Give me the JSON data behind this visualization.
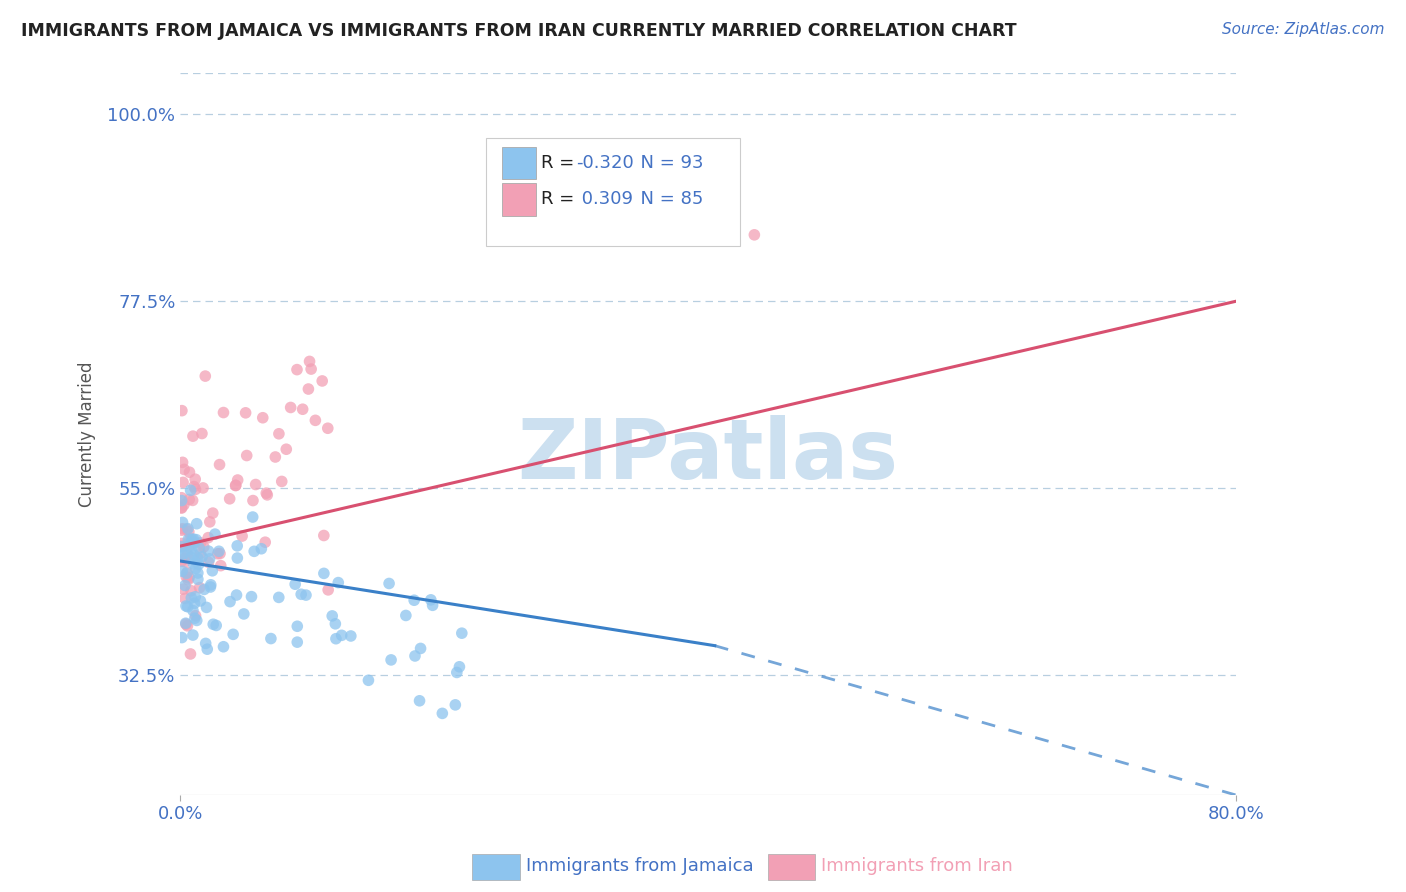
{
  "title": "IMMIGRANTS FROM JAMAICA VS IMMIGRANTS FROM IRAN CURRENTLY MARRIED CORRELATION CHART",
  "source": "Source: ZipAtlas.com",
  "xlabel_jamaica": "Immigrants from Jamaica",
  "xlabel_iran": "Immigrants from Iran",
  "ylabel": "Currently Married",
  "xlim": [
    0.0,
    0.8
  ],
  "ylim": [
    0.18,
    1.05
  ],
  "xtick_labels": [
    "0.0%",
    "80.0%"
  ],
  "yticks": [
    0.325,
    0.55,
    0.775,
    1.0
  ],
  "ytick_labels": [
    "32.5%",
    "55.0%",
    "77.5%",
    "100.0%"
  ],
  "legend_r_jamaica": "-0.320",
  "legend_n_jamaica": "93",
  "legend_r_iran": "0.309",
  "legend_n_iran": "85",
  "color_jamaica": "#8dc4ee",
  "color_iran": "#f2a0b5",
  "color_line_jamaica": "#3a80c8",
  "color_line_iran": "#d85070",
  "color_axis_labels": "#4472c4",
  "color_title": "#222222",
  "color_source": "#4472c4",
  "watermark_text": "ZIPatlas",
  "watermark_color": "#cce0f0",
  "background_color": "#ffffff",
  "grid_color": "#b8cfe0",
  "trend_jamaica_x0": 0.0,
  "trend_jamaica_x1": 0.405,
  "trend_jamaica_y0": 0.462,
  "trend_jamaica_y1": 0.36,
  "trend_jamaica_dash_x1": 0.8,
  "trend_jamaica_dash_y1": 0.18,
  "trend_iran_x0": 0.0,
  "trend_iran_x1": 0.8,
  "trend_iran_y0": 0.48,
  "trend_iran_y1": 0.775
}
